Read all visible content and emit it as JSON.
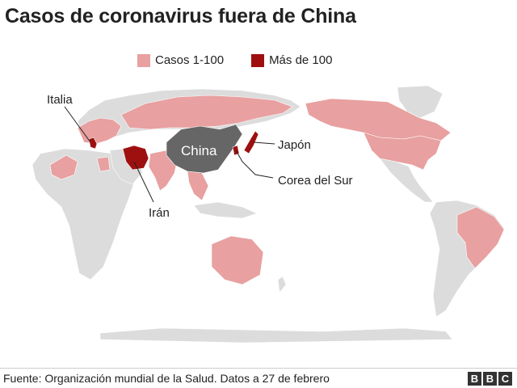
{
  "title": "Casos de coronavirus fuera de China",
  "legend": [
    {
      "label": "Casos 1-100",
      "color": "#e8a0a0"
    },
    {
      "label": "Más de 100",
      "color": "#9e1010"
    }
  ],
  "colors": {
    "land": "#dcdcdc",
    "low": "#e8a0a0",
    "high": "#9e1010",
    "china": "#666666"
  },
  "labels": {
    "italia": "Italia",
    "iran": "Irán",
    "china": "China",
    "japon": "Japón",
    "corea": "Corea del Sur"
  },
  "source": "Fuente: Organización mundial de la Salud. Datos a 27 de febrero",
  "brand": [
    "B",
    "B",
    "C"
  ]
}
